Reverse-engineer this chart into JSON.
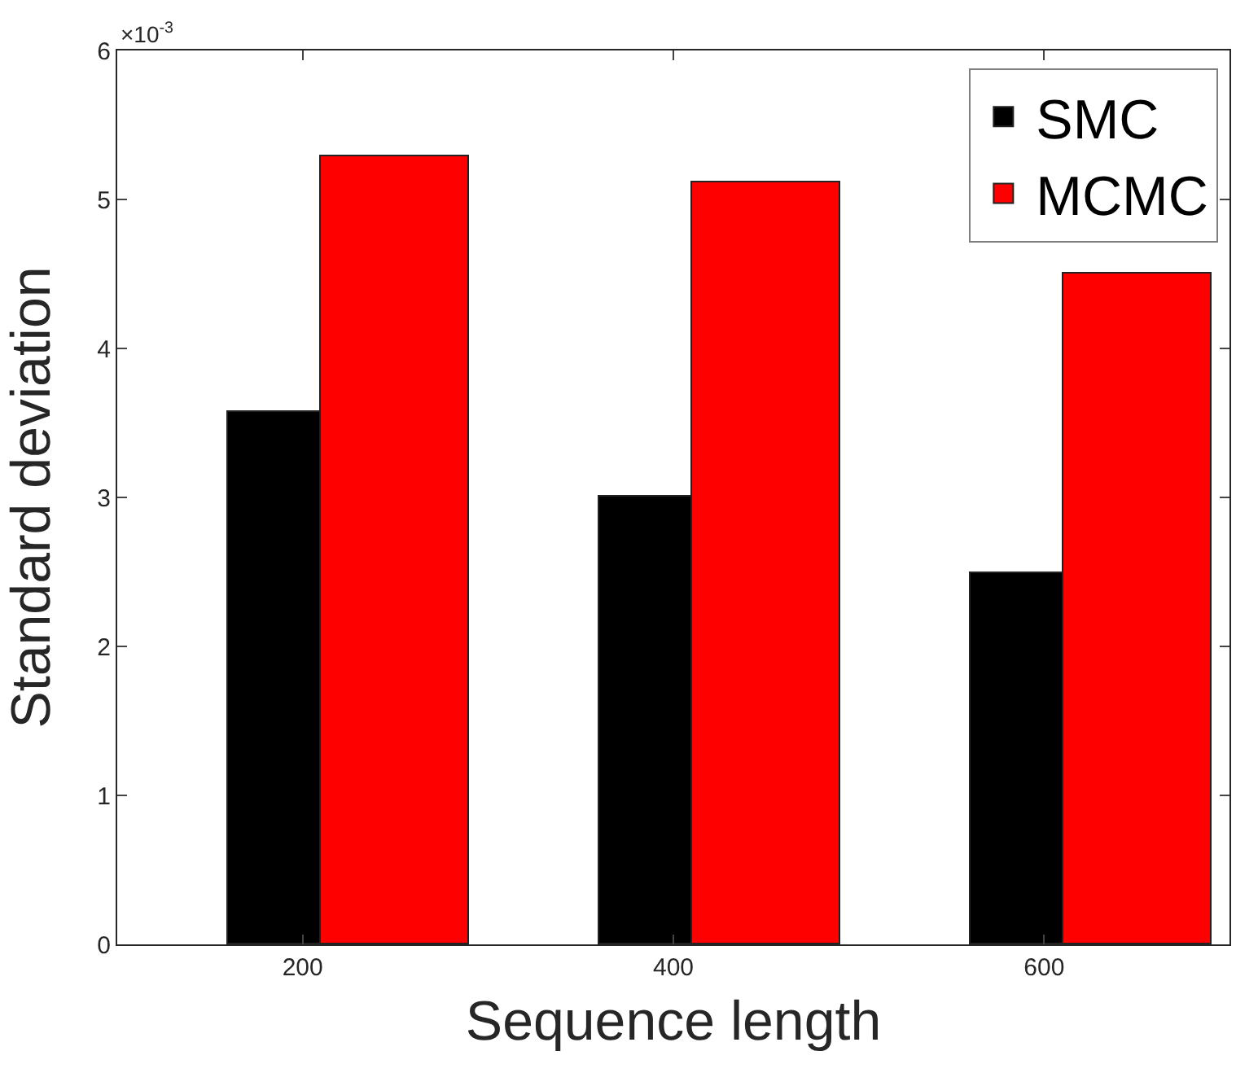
{
  "chart_data": {
    "type": "bar",
    "xlabel": "Sequence length",
    "ylabel": "Standard deviation",
    "categories": [
      "200",
      "400",
      "600"
    ],
    "series": [
      {
        "name": "SMC",
        "color": "#000000",
        "values": [
          3.57,
          3.01,
          2.49
        ]
      },
      {
        "name": "MCMC",
        "color": "#ff0000",
        "values": [
          5.29,
          5.11,
          4.5
        ]
      }
    ],
    "ylim": [
      0,
      6
    ],
    "yticks": [
      0,
      1,
      2,
      3,
      4,
      5,
      6
    ],
    "legend": "top right",
    "annotations": [
      "×10$^{-3}$"
    ]
  }
}
